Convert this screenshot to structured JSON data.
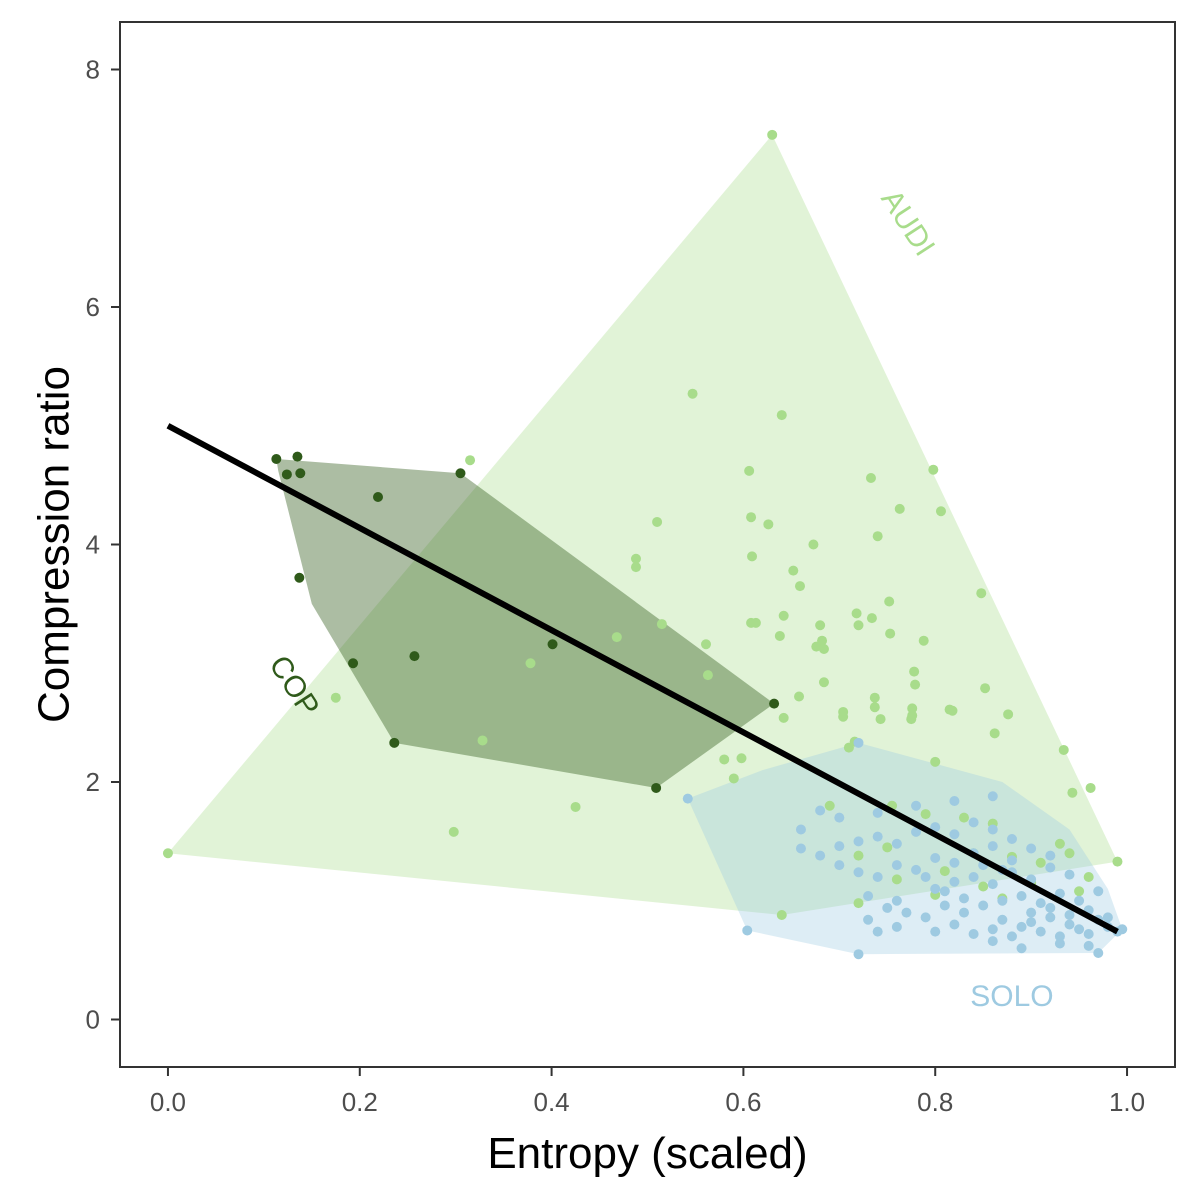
{
  "chart_data": {
    "type": "scatter",
    "title": "",
    "xlabel": "Entropy (scaled)",
    "ylabel": "Compression ratio",
    "xlim": [
      -0.05,
      1.05
    ],
    "ylim": [
      -0.4,
      8.4
    ],
    "x_ticks": [
      0.0,
      0.2,
      0.4,
      0.6,
      0.8,
      1.0
    ],
    "x_tick_labels": [
      "0.0",
      "0.2",
      "0.4",
      "0.6",
      "0.8",
      "1.0"
    ],
    "y_ticks": [
      0,
      2,
      4,
      6,
      8
    ],
    "y_tick_labels": [
      "0",
      "2",
      "4",
      "6",
      "8"
    ],
    "grid": false,
    "legend": "none",
    "colors": {
      "AUDI": "#a8dc8b",
      "COP": "#2f5a1a",
      "SOLO": "#9ecae1",
      "fit_line": "#000000",
      "panel_border": "#333333"
    },
    "series": [
      {
        "name": "AUDI",
        "label": "AUDI",
        "hull": [
          [
            0.0,
            1.4
          ],
          [
            0.63,
            7.45
          ],
          [
            0.99,
            1.33
          ],
          [
            0.64,
            0.88
          ]
        ],
        "points": [
          [
            0.0,
            1.4
          ],
          [
            0.63,
            7.45
          ],
          [
            0.99,
            1.33
          ],
          [
            0.64,
            0.88
          ],
          [
            0.547,
            5.27
          ],
          [
            0.64,
            5.09
          ],
          [
            0.315,
            4.71
          ],
          [
            0.606,
            4.62
          ],
          [
            0.798,
            4.63
          ],
          [
            0.51,
            4.19
          ],
          [
            0.733,
            4.56
          ],
          [
            0.608,
            4.23
          ],
          [
            0.626,
            4.17
          ],
          [
            0.763,
            4.3
          ],
          [
            0.806,
            4.28
          ],
          [
            0.488,
            3.88
          ],
          [
            0.488,
            3.81
          ],
          [
            0.609,
            3.9
          ],
          [
            0.673,
            4.0
          ],
          [
            0.74,
            4.07
          ],
          [
            0.652,
            3.78
          ],
          [
            0.659,
            3.65
          ],
          [
            0.848,
            3.59
          ],
          [
            0.752,
            3.52
          ],
          [
            0.718,
            3.42
          ],
          [
            0.642,
            3.4
          ],
          [
            0.734,
            3.38
          ],
          [
            0.515,
            3.33
          ],
          [
            0.608,
            3.34
          ],
          [
            0.613,
            3.34
          ],
          [
            0.68,
            3.32
          ],
          [
            0.72,
            3.32
          ],
          [
            0.638,
            3.23
          ],
          [
            0.753,
            3.25
          ],
          [
            0.468,
            3.22
          ],
          [
            0.788,
            3.19
          ],
          [
            0.682,
            3.19
          ],
          [
            0.561,
            3.16
          ],
          [
            0.676,
            3.14
          ],
          [
            0.684,
            3.12
          ],
          [
            0.378,
            3.0
          ],
          [
            0.778,
            2.93
          ],
          [
            0.563,
            2.9
          ],
          [
            0.779,
            2.82
          ],
          [
            0.684,
            2.84
          ],
          [
            0.737,
            2.71
          ],
          [
            0.852,
            2.79
          ],
          [
            0.658,
            2.72
          ],
          [
            0.175,
            2.71
          ],
          [
            0.776,
            2.62
          ],
          [
            0.704,
            2.59
          ],
          [
            0.737,
            2.63
          ],
          [
            0.776,
            2.56
          ],
          [
            0.815,
            2.61
          ],
          [
            0.642,
            2.54
          ],
          [
            0.704,
            2.55
          ],
          [
            0.775,
            2.53
          ],
          [
            0.743,
            2.53
          ],
          [
            0.818,
            2.6
          ],
          [
            0.876,
            2.57
          ],
          [
            0.862,
            2.41
          ],
          [
            0.328,
            2.35
          ],
          [
            0.71,
            2.29
          ],
          [
            0.716,
            2.34
          ],
          [
            0.58,
            2.19
          ],
          [
            0.598,
            2.2
          ],
          [
            0.934,
            2.27
          ],
          [
            0.8,
            2.17
          ],
          [
            0.59,
            2.03
          ],
          [
            0.425,
            1.79
          ],
          [
            0.298,
            1.58
          ],
          [
            0.943,
            1.91
          ],
          [
            0.962,
            1.95
          ],
          [
            0.69,
            1.8
          ],
          [
            0.755,
            1.8
          ],
          [
            0.79,
            1.73
          ],
          [
            0.83,
            1.7
          ],
          [
            0.86,
            1.65
          ],
          [
            0.75,
            1.45
          ],
          [
            0.72,
            1.38
          ],
          [
            0.84,
            1.4
          ],
          [
            0.88,
            1.37
          ],
          [
            0.91,
            1.32
          ],
          [
            0.94,
            1.4
          ],
          [
            0.93,
            1.48
          ],
          [
            0.81,
            1.25
          ],
          [
            0.76,
            1.18
          ],
          [
            0.85,
            1.12
          ],
          [
            0.9,
            1.15
          ],
          [
            0.96,
            1.2
          ],
          [
            0.87,
            1.02
          ],
          [
            0.72,
            0.98
          ],
          [
            0.8,
            1.05
          ],
          [
            0.95,
            1.08
          ]
        ]
      },
      {
        "name": "COP",
        "label": "COP",
        "hull": [
          [
            0.113,
            4.72
          ],
          [
            0.305,
            4.6
          ],
          [
            0.632,
            2.66
          ],
          [
            0.509,
            1.95
          ],
          [
            0.236,
            2.33
          ],
          [
            0.15,
            3.5
          ],
          [
            0.115,
            4.62
          ]
        ],
        "points": [
          [
            0.113,
            4.72
          ],
          [
            0.135,
            4.74
          ],
          [
            0.124,
            4.59
          ],
          [
            0.138,
            4.6
          ],
          [
            0.305,
            4.6
          ],
          [
            0.219,
            4.4
          ],
          [
            0.137,
            3.72
          ],
          [
            0.401,
            3.16
          ],
          [
            0.257,
            3.06
          ],
          [
            0.193,
            3.0
          ],
          [
            0.632,
            2.66
          ],
          [
            0.236,
            2.33
          ],
          [
            0.509,
            1.95
          ]
        ]
      },
      {
        "name": "SOLO",
        "label": "SOLO",
        "hull": [
          [
            0.542,
            1.86
          ],
          [
            0.62,
            2.1
          ],
          [
            0.72,
            2.33
          ],
          [
            0.87,
            2.0
          ],
          [
            0.94,
            1.6
          ],
          [
            0.98,
            1.1
          ],
          [
            0.995,
            0.76
          ],
          [
            0.97,
            0.56
          ],
          [
            0.72,
            0.55
          ],
          [
            0.604,
            0.75
          ]
        ],
        "points": [
          [
            0.542,
            1.86
          ],
          [
            0.72,
            2.33
          ],
          [
            0.604,
            0.75
          ],
          [
            0.72,
            0.55
          ],
          [
            0.97,
            0.56
          ],
          [
            0.995,
            0.76
          ],
          [
            0.89,
            0.6
          ],
          [
            0.74,
            0.74
          ],
          [
            0.76,
            0.78
          ],
          [
            0.82,
            0.8
          ],
          [
            0.84,
            0.72
          ],
          [
            0.86,
            0.76
          ],
          [
            0.87,
            0.84
          ],
          [
            0.88,
            0.7
          ],
          [
            0.89,
            0.78
          ],
          [
            0.9,
            0.82
          ],
          [
            0.91,
            0.74
          ],
          [
            0.92,
            0.86
          ],
          [
            0.93,
            0.7
          ],
          [
            0.94,
            0.8
          ],
          [
            0.95,
            0.76
          ],
          [
            0.96,
            0.72
          ],
          [
            0.97,
            0.84
          ],
          [
            0.98,
            0.78
          ],
          [
            0.99,
            0.74
          ],
          [
            0.83,
            0.9
          ],
          [
            0.85,
            0.96
          ],
          [
            0.87,
            1.0
          ],
          [
            0.89,
            1.04
          ],
          [
            0.91,
            0.98
          ],
          [
            0.93,
            1.06
          ],
          [
            0.95,
            1.0
          ],
          [
            0.97,
            1.08
          ],
          [
            0.8,
            1.1
          ],
          [
            0.82,
            1.16
          ],
          [
            0.84,
            1.2
          ],
          [
            0.86,
            1.14
          ],
          [
            0.88,
            1.24
          ],
          [
            0.9,
            1.18
          ],
          [
            0.92,
            1.28
          ],
          [
            0.94,
            1.22
          ],
          [
            0.76,
            1.3
          ],
          [
            0.78,
            1.26
          ],
          [
            0.8,
            1.36
          ],
          [
            0.82,
            1.32
          ],
          [
            0.84,
            1.4
          ],
          [
            0.86,
            1.46
          ],
          [
            0.88,
            1.34
          ],
          [
            0.9,
            1.44
          ],
          [
            0.92,
            1.38
          ],
          [
            0.7,
            1.46
          ],
          [
            0.72,
            1.5
          ],
          [
            0.74,
            1.54
          ],
          [
            0.76,
            1.48
          ],
          [
            0.78,
            1.58
          ],
          [
            0.8,
            1.62
          ],
          [
            0.82,
            1.56
          ],
          [
            0.84,
            1.66
          ],
          [
            0.86,
            1.6
          ],
          [
            0.88,
            1.52
          ],
          [
            0.66,
            1.44
          ],
          [
            0.68,
            1.38
          ],
          [
            0.7,
            1.3
          ],
          [
            0.72,
            1.24
          ],
          [
            0.74,
            1.2
          ],
          [
            0.7,
            1.7
          ],
          [
            0.74,
            1.74
          ],
          [
            0.78,
            1.8
          ],
          [
            0.82,
            1.84
          ],
          [
            0.86,
            1.88
          ],
          [
            0.66,
            1.6
          ],
          [
            0.68,
            1.76
          ],
          [
            0.79,
            1.2
          ],
          [
            0.81,
            1.08
          ],
          [
            0.83,
            1.02
          ],
          [
            0.85,
            1.3
          ],
          [
            0.87,
            1.26
          ],
          [
            0.73,
            1.04
          ],
          [
            0.75,
            0.94
          ],
          [
            0.77,
            0.9
          ],
          [
            0.79,
            0.86
          ],
          [
            0.81,
            0.96
          ],
          [
            0.9,
            0.9
          ],
          [
            0.92,
            0.94
          ],
          [
            0.94,
            0.88
          ],
          [
            0.96,
            0.92
          ],
          [
            0.98,
            0.86
          ],
          [
            0.73,
            0.84
          ],
          [
            0.76,
            1.0
          ],
          [
            0.8,
            0.74
          ],
          [
            0.86,
            0.66
          ],
          [
            0.93,
            0.64
          ],
          [
            0.96,
            0.62
          ]
        ]
      }
    ],
    "fit_line": {
      "x": [
        0.0,
        0.99
      ],
      "y": [
        5.0,
        0.74
      ]
    },
    "annotations": [
      {
        "text": "AUDI",
        "series": "AUDI",
        "x": 0.77,
        "y": 6.7,
        "rotation_deg": 57
      },
      {
        "text": "COP",
        "series": "COP",
        "x": 0.13,
        "y": 2.8,
        "rotation_deg": 57
      },
      {
        "text": "SOLO",
        "series": "SOLO",
        "x": 0.88,
        "y": 0.18,
        "rotation_deg": 0
      }
    ]
  }
}
